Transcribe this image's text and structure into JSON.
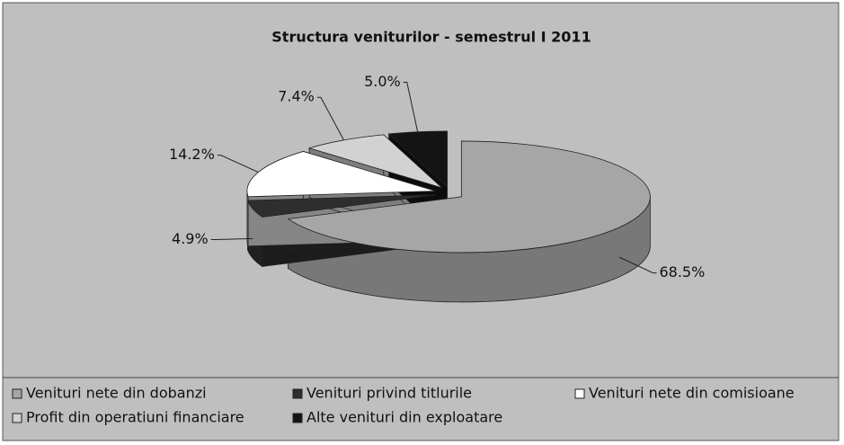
{
  "chart_data": {
    "type": "pie",
    "title": "Structura veniturilor - semestrul I 2011",
    "categories": [
      "Venituri nete din dobanzi",
      "Venituri privind titlurile",
      "Venituri nete din comisioane",
      "Profit din operatiuni financiare",
      "Alte venituri din exploatare"
    ],
    "values": [
      68.5,
      4.9,
      14.2,
      7.4,
      5.0
    ],
    "value_labels": [
      "68.5%",
      "4.9%",
      "14.2%",
      "7.4%",
      "5.0%"
    ],
    "colors": [
      "#a6a6a6",
      "#2e2e2e",
      "#ffffff",
      "#d2d2d2",
      "#141414"
    ],
    "legend": "bottom"
  }
}
